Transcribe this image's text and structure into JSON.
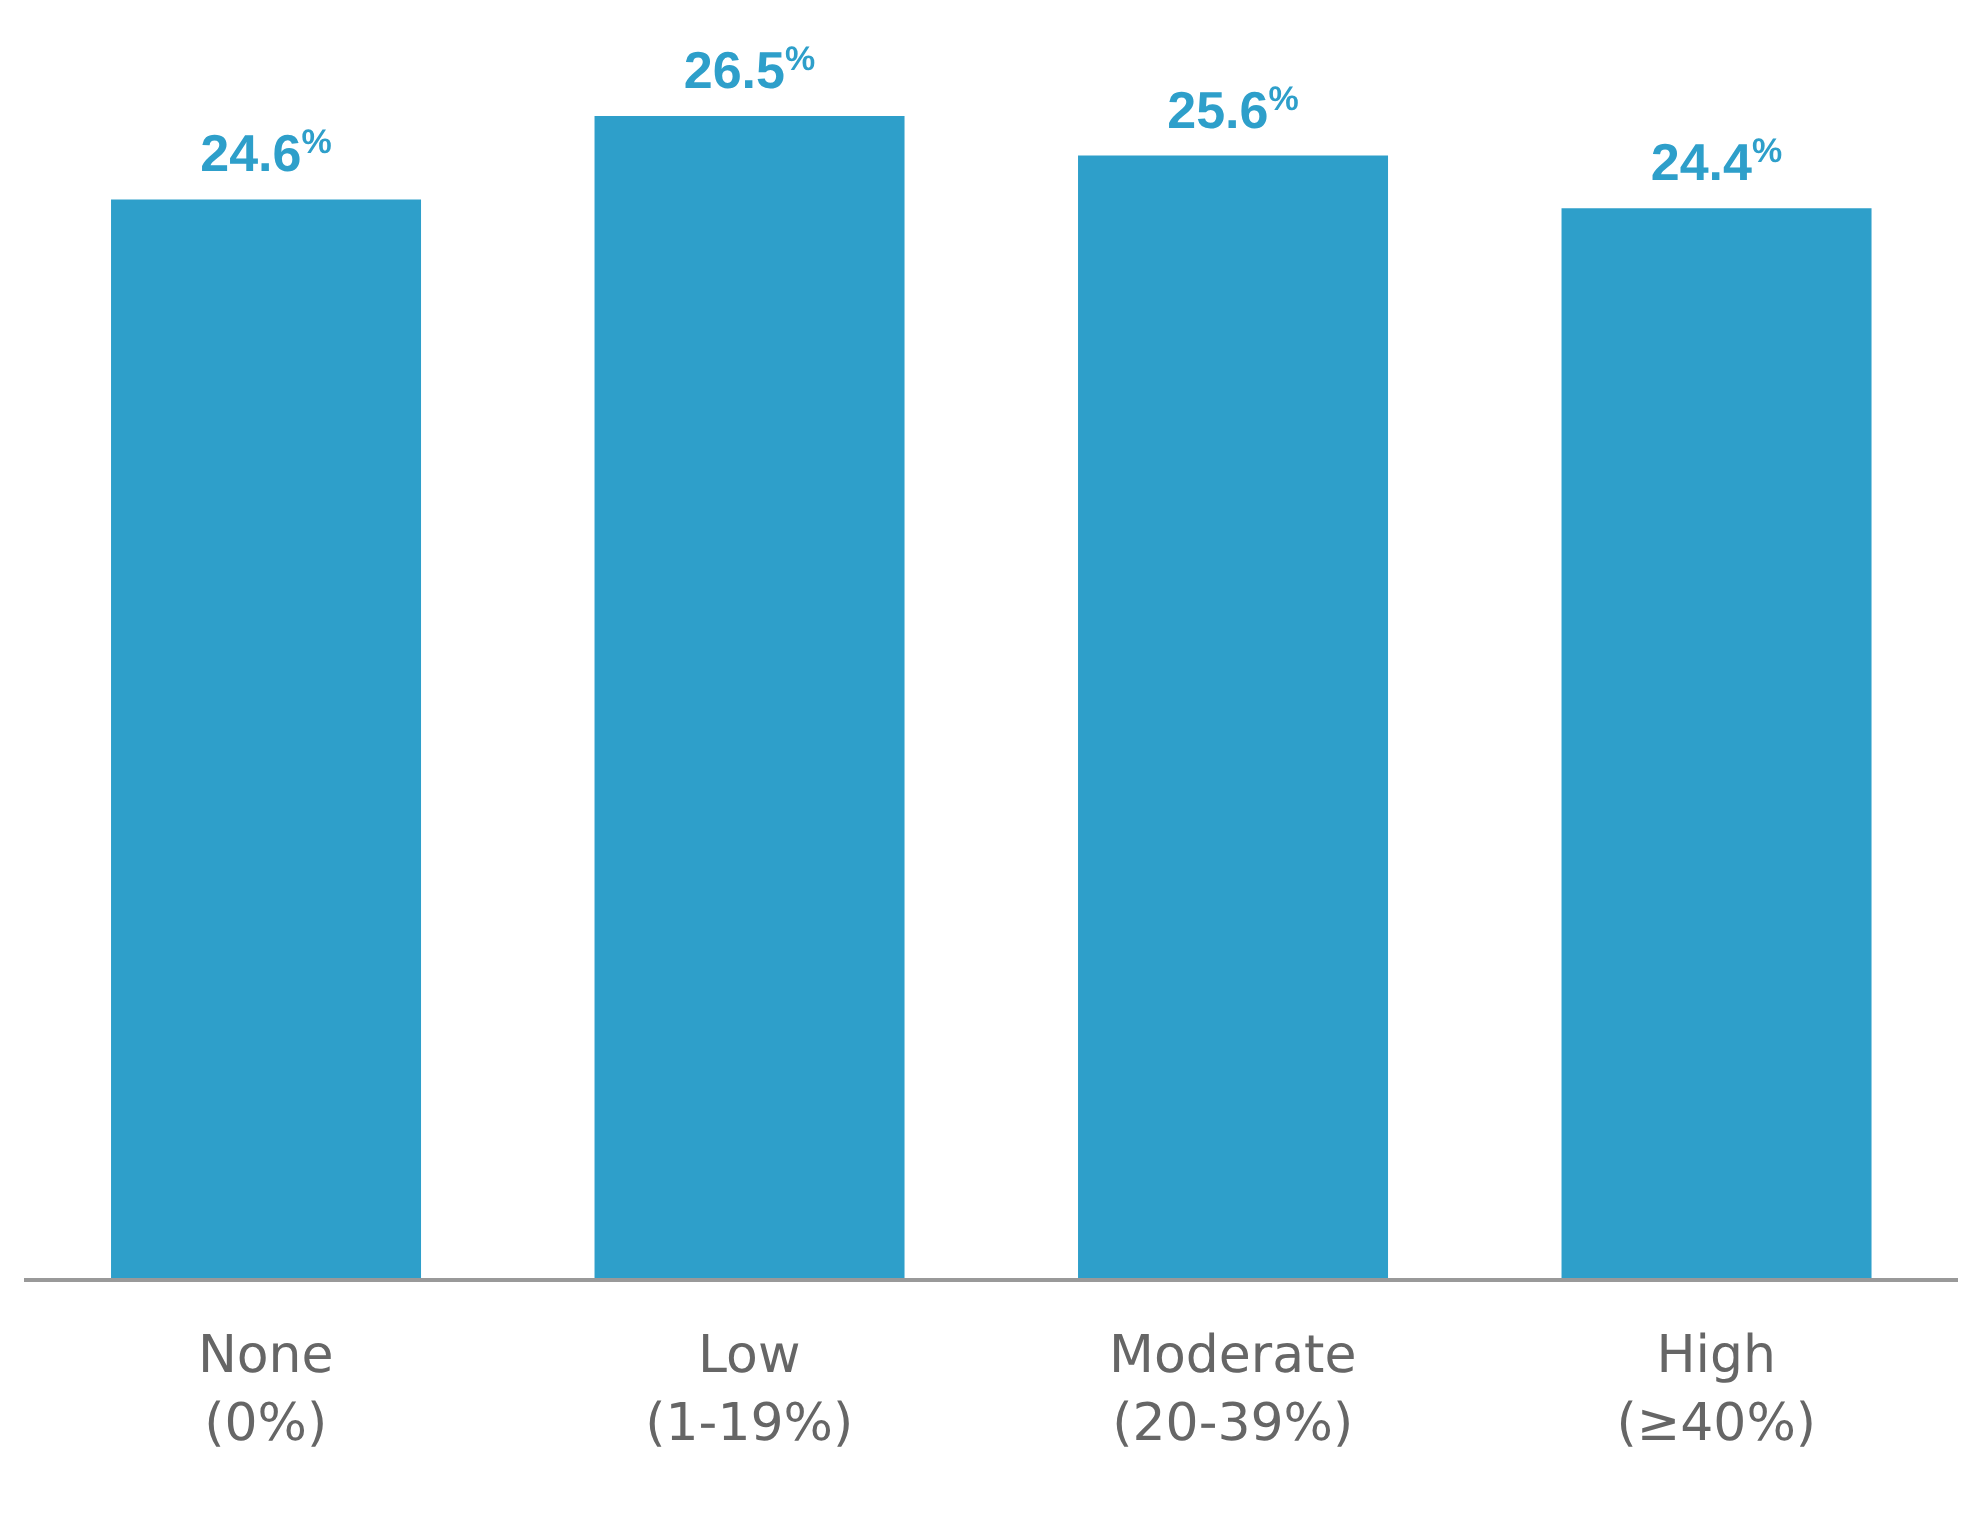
{
  "chart_data": {
    "type": "bar",
    "categories": [
      "None\n(0%)",
      "Low\n(1-19%)",
      "Moderate\n(20-39%)",
      "High\n(≥40%)"
    ],
    "values": [
      24.6,
      26.5,
      25.6,
      24.4
    ],
    "value_labels": [
      "24.6$^{%}$",
      "26.5$^{%}$",
      "25.6$^{%}$",
      "24.4$^{%}$"
    ],
    "color": "#2e9fca",
    "grid": false,
    "legend": false
  }
}
